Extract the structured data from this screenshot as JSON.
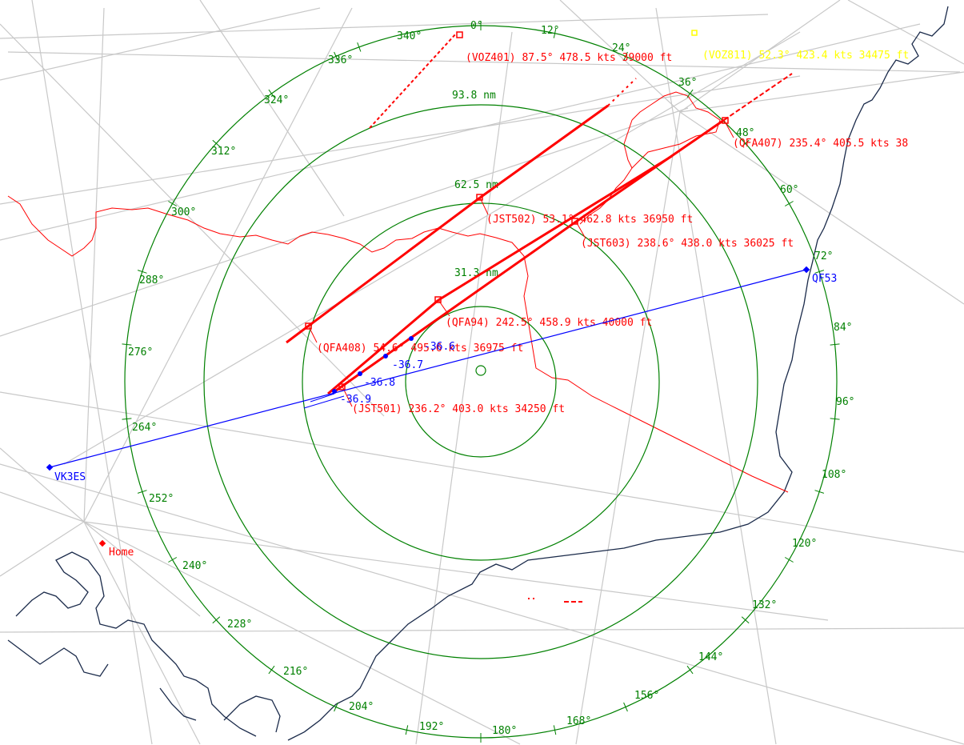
{
  "range_labels": [
    "31.3 nm",
    "62.5 nm",
    "93.8 nm"
  ],
  "bearing_labels": [
    {
      "deg": 0,
      "text": "0°"
    },
    {
      "deg": 12,
      "text": "12°"
    },
    {
      "deg": 24,
      "text": "24°"
    },
    {
      "deg": 36,
      "text": "36°"
    },
    {
      "deg": 48,
      "text": "48°"
    },
    {
      "deg": 60,
      "text": "60°"
    },
    {
      "deg": 72,
      "text": "72°"
    },
    {
      "deg": 84,
      "text": "84°"
    },
    {
      "deg": 96,
      "text": "96°"
    },
    {
      "deg": 108,
      "text": "108°"
    },
    {
      "deg": 120,
      "text": "120°"
    },
    {
      "deg": 132,
      "text": "132°"
    },
    {
      "deg": 144,
      "text": "144°"
    },
    {
      "deg": 156,
      "text": "156°"
    },
    {
      "deg": 168,
      "text": "168°"
    },
    {
      "deg": 180,
      "text": "180°"
    },
    {
      "deg": 192,
      "text": "192°"
    },
    {
      "deg": 204,
      "text": "204°"
    },
    {
      "deg": 216,
      "text": "216°"
    },
    {
      "deg": 228,
      "text": "228°"
    },
    {
      "deg": 240,
      "text": "240°"
    },
    {
      "deg": 252,
      "text": "252°"
    },
    {
      "deg": 264,
      "text": "264°"
    },
    {
      "deg": 276,
      "text": "276°"
    },
    {
      "deg": 288,
      "text": "288°"
    },
    {
      "deg": 300,
      "text": "300°"
    },
    {
      "deg": 312,
      "text": "312°"
    },
    {
      "deg": 324,
      "text": "324°"
    },
    {
      "deg": 336,
      "text": "336°"
    },
    {
      "deg": 340,
      "text": "340°"
    }
  ],
  "flights": [
    {
      "callsign": "VOZ401",
      "label": "(VOZ401) 87.5° 478.5 kts 39000 ft",
      "color": "#ff0000"
    },
    {
      "callsign": "QFA407",
      "label": "(QFA407) 235.4° 405.5 kts 38",
      "color": "#ff0000"
    },
    {
      "callsign": "JST502",
      "label": "(JST502) 53.1° 462.8 kts 36950 ft",
      "color": "#ff0000"
    },
    {
      "callsign": "JST603",
      "label": "(JST603) 238.6° 438.0 kts 36025 ft",
      "color": "#ff0000"
    },
    {
      "callsign": "QFA94",
      "label": "(QFA94) 242.5° 458.9 kts 40000 ft",
      "color": "#ff0000"
    },
    {
      "callsign": "QFA408",
      "label": "(QFA408) 54.6° 495.6 kts 36975 ft",
      "color": "#ff0000"
    },
    {
      "callsign": "JST501",
      "label": "(JST501) 236.2° 403.0 kts 34250 ft",
      "color": "#ff0000"
    },
    {
      "callsign": "VOZ811",
      "label": "(VOZ811) 52.3° 423.4 kts 34475 ft",
      "color": "#ffff00"
    }
  ],
  "stations": {
    "vk3es": "VK3ES",
    "qf53": "QF53",
    "home": "Home"
  },
  "path_values": [
    "-36.6",
    "-36.7",
    "-36.8",
    "-36.9"
  ],
  "colors": {
    "ring": "#008000",
    "aircraft": "#ff0000",
    "path": "#0000ff",
    "coast": "#1a2a4a",
    "airway": "#c8c8c8",
    "highlight": "#ffff00"
  }
}
